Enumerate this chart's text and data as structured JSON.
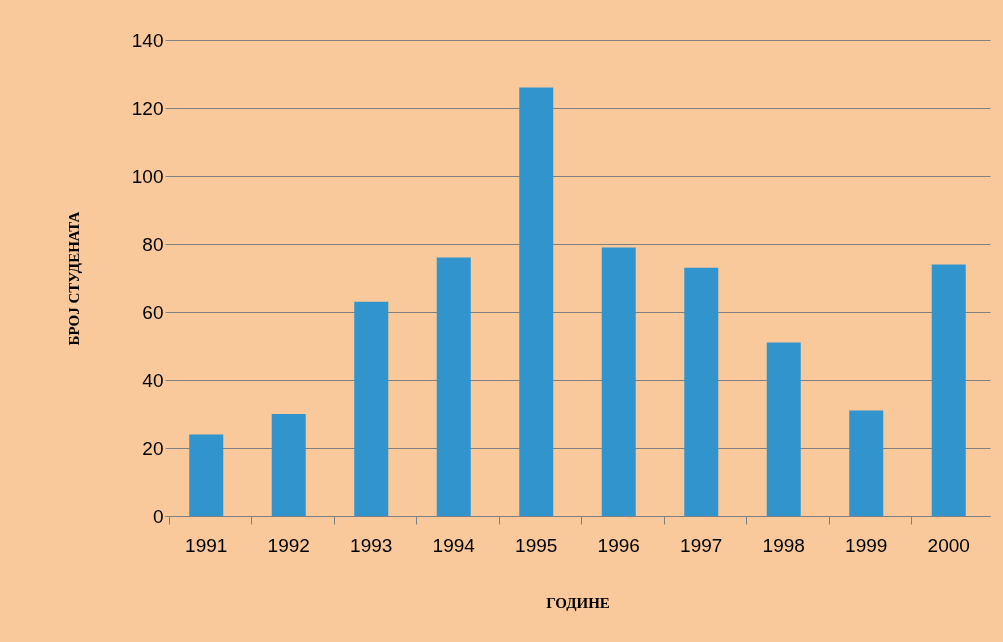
{
  "chart_data": {
    "type": "bar",
    "xlabel": "ГОДИНЕ",
    "ylabel": "БРОЈ СТУДЕНАТА",
    "categories": [
      "1991",
      "1992",
      "1993",
      "1994",
      "1995",
      "1996",
      "1997",
      "1998",
      "1999",
      "2000"
    ],
    "values": [
      24,
      30,
      63,
      76,
      126,
      79,
      73,
      51,
      31,
      74
    ],
    "color": "#3194cc",
    "ylim": [
      0,
      140
    ],
    "yticks": [
      0,
      20,
      40,
      60,
      80,
      100,
      120,
      140
    ],
    "grid": "y"
  }
}
